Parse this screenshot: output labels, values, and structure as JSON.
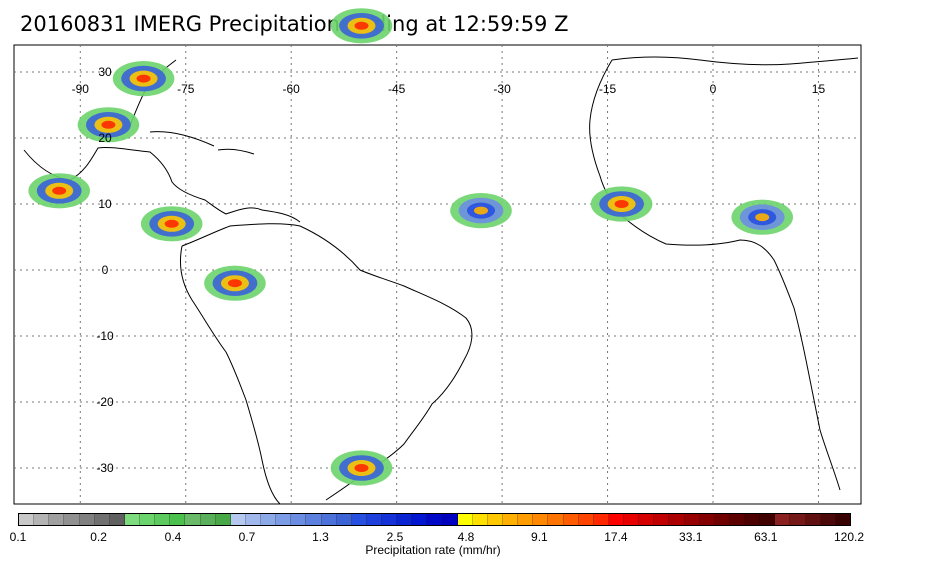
{
  "title": "20160831 IMERG Precipitation ending at 12:59:59 Z",
  "map": {
    "lon_labels": [
      {
        "lon": -90,
        "text": "-90"
      },
      {
        "lon": -75,
        "text": "-75"
      },
      {
        "lon": -60,
        "text": "-60"
      },
      {
        "lon": -45,
        "text": "-45"
      },
      {
        "lon": -30,
        "text": "-30"
      },
      {
        "lon": -15,
        "text": "-15"
      },
      {
        "lon": 0,
        "text": "0"
      },
      {
        "lon": 15,
        "text": "15"
      }
    ],
    "lat_labels": [
      {
        "lat": 30,
        "text": "30"
      },
      {
        "lat": 20,
        "text": "20"
      },
      {
        "lat": 10,
        "text": "10"
      },
      {
        "lat": 0,
        "text": "0"
      },
      {
        "lat": -10,
        "text": "-10"
      },
      {
        "lat": -20,
        "text": "-20"
      },
      {
        "lat": -30,
        "text": "-30"
      }
    ],
    "precip_regions": [
      {
        "name": "Gulf of Mexico / Florida",
        "lon": -86,
        "lat": 22,
        "level": "high"
      },
      {
        "name": "Florida coast",
        "lon": -81,
        "lat": 29,
        "level": "high"
      },
      {
        "name": "Central America Pacific",
        "lon": -93,
        "lat": 12,
        "level": "high"
      },
      {
        "name": "Panama / Colombia",
        "lon": -77,
        "lat": 7,
        "level": "high"
      },
      {
        "name": "Amazon west",
        "lon": -68,
        "lat": -2,
        "level": "high"
      },
      {
        "name": "Atlantic ITCZ",
        "lon": -33,
        "lat": 9,
        "level": "medium"
      },
      {
        "name": "West Africa coast",
        "lon": -13,
        "lat": 10,
        "level": "high"
      },
      {
        "name": "Central Africa",
        "lon": 7,
        "lat": 8,
        "level": "medium"
      },
      {
        "name": "South Brazil / Uruguay",
        "lon": -50,
        "lat": -30,
        "level": "high"
      },
      {
        "name": "Mid-Atlantic north",
        "lon": -50,
        "lat": 37,
        "level": "high"
      }
    ]
  },
  "colorbar": {
    "colors": [
      "#c8c8c8",
      "#b4b4b4",
      "#a0a0a0",
      "#909090",
      "#808080",
      "#707070",
      "#606060",
      "#7ddc7d",
      "#6cd46c",
      "#5cca5c",
      "#4cc04c",
      "#6aba6a",
      "#5ab05a",
      "#48a848",
      "#b4c8f0",
      "#a0b8ec",
      "#8caae8",
      "#7c9ce6",
      "#6c8ee2",
      "#5c80de",
      "#4c72da",
      "#3c64d6",
      "#2850e0",
      "#1e40dc",
      "#1432d8",
      "#0a24d4",
      "#0016d0",
      "#0008c8",
      "#0000c0",
      "#ffff00",
      "#ffe000",
      "#ffc800",
      "#ffb000",
      "#ff9c00",
      "#ff8800",
      "#ff7400",
      "#ff5c00",
      "#ff4400",
      "#ff2800",
      "#ff0000",
      "#e80000",
      "#d40000",
      "#c00000",
      "#ac0000",
      "#980000",
      "#840000",
      "#700000",
      "#5c0000",
      "#4c0000",
      "#400000",
      "#8a2020",
      "#741818",
      "#601010",
      "#4c0808",
      "#380000"
    ],
    "labels": [
      {
        "text": "0.1",
        "frac": 0.0
      },
      {
        "text": "0.2",
        "frac": 0.0967
      },
      {
        "text": "0.4",
        "frac": 0.1861
      },
      {
        "text": "0.7",
        "frac": 0.2748
      },
      {
        "text": "1.3",
        "frac": 0.3631
      },
      {
        "text": "2.5",
        "frac": 0.4525
      },
      {
        "text": "4.8",
        "frac": 0.5378
      },
      {
        "text": "9.1",
        "frac": 0.6259
      },
      {
        "text": "17.4",
        "frac": 0.7178
      },
      {
        "text": "33.1",
        "frac": 0.8076
      },
      {
        "text": "63.1",
        "frac": 0.8977
      },
      {
        "text": "120.2",
        "frac": 0.9976
      }
    ],
    "unit_label": "Precipitation rate (mm/hr)"
  }
}
